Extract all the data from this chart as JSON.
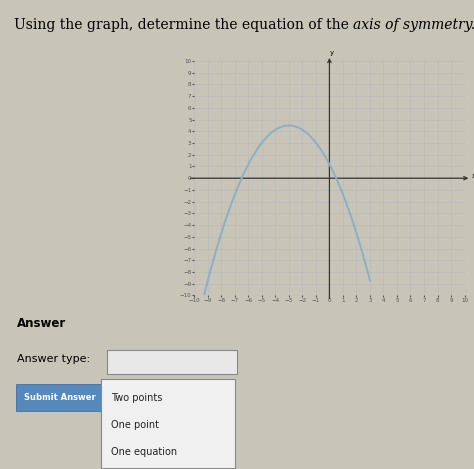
{
  "title_normal": "Using the graph, determine the equation of the ",
  "title_italic": "axis of symmetry.",
  "title_fontsize": 10,
  "xlim": [
    -10,
    10
  ],
  "ylim": [
    -10,
    10
  ],
  "xticks": [
    -10,
    -9,
    -8,
    -7,
    -6,
    -5,
    -4,
    -3,
    -2,
    -1,
    0,
    1,
    2,
    3,
    4,
    5,
    6,
    7,
    8,
    9,
    10
  ],
  "yticks": [
    -10,
    -9,
    -8,
    -7,
    -6,
    -5,
    -4,
    -3,
    -2,
    -1,
    0,
    1,
    2,
    3,
    4,
    5,
    6,
    7,
    8,
    9,
    10
  ],
  "grid_color": "#aab0b8",
  "grid_alpha": 0.6,
  "axis_color": "#333333",
  "curve_color": "#8ab0c8",
  "curve_lw": 1.4,
  "parabola_vertex_x": -3,
  "parabola_vertex_y": 4.5,
  "parabola_root1": -6.5,
  "parabola_root2": 0.5,
  "background_color": "#c8c4b8",
  "graph_bg_color": "#c8c4b8",
  "answer_label": "Answer",
  "answer_type_label": "Answer type:",
  "submit_button_text": "Submit Answer",
  "submit_button_color": "#5588bb",
  "dropdown_options": [
    "Two points",
    "One point",
    "One equation"
  ],
  "tick_fontsize": 4,
  "tick_color": "#555555"
}
